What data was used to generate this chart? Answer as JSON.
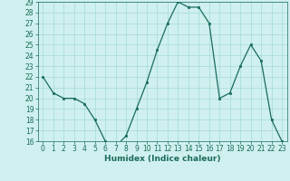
{
  "x": [
    0,
    1,
    2,
    3,
    4,
    5,
    6,
    7,
    8,
    9,
    10,
    11,
    12,
    13,
    14,
    15,
    16,
    17,
    18,
    19,
    20,
    21,
    22,
    23
  ],
  "y": [
    22,
    20.5,
    20,
    20,
    19.5,
    18,
    16,
    15.5,
    16.5,
    19,
    21.5,
    24.5,
    27,
    29,
    28.5,
    28.5,
    27,
    20,
    20.5,
    23,
    25,
    23.5,
    18,
    16
  ],
  "line_color": "#1a6b5a",
  "marker_color": "#1a6b5a",
  "bg_color": "#cff0ee",
  "grid_color": "#aaddda",
  "xlabel": "Humidex (Indice chaleur)",
  "ylim": [
    16,
    29
  ],
  "xlim": [
    -0.5,
    23.5
  ],
  "yticks": [
    16,
    17,
    18,
    19,
    20,
    21,
    22,
    23,
    24,
    25,
    26,
    27,
    28,
    29
  ],
  "xticks": [
    0,
    1,
    2,
    3,
    4,
    5,
    6,
    7,
    8,
    9,
    10,
    11,
    12,
    13,
    14,
    15,
    16,
    17,
    18,
    19,
    20,
    21,
    22,
    23
  ],
  "tick_fontsize": 5.5,
  "label_fontsize": 6.5,
  "label_fontweight": "bold"
}
